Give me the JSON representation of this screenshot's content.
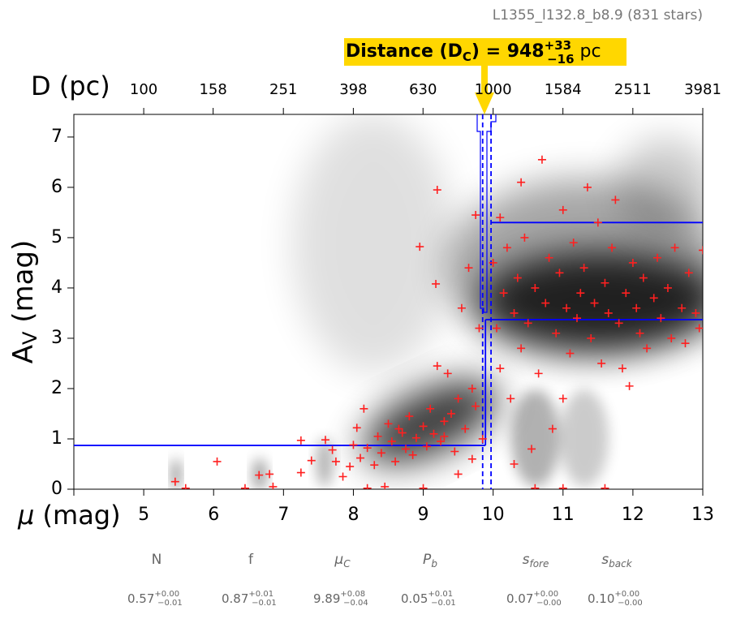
{
  "chart_data": {
    "type": "scatter",
    "title": "L1355_l132.8_b8.9 (831 stars)",
    "xlabel": {
      "symbol": "μ",
      "unit": " (mag)"
    },
    "ylabel": {
      "main": "A",
      "sub": "V",
      "unit": " (mag)"
    },
    "x2label": "D (pc)",
    "xlim": [
      4,
      13
    ],
    "xticks": [
      4,
      5,
      6,
      7,
      8,
      9,
      10,
      11,
      12,
      13
    ],
    "xtick_labels_from": 1,
    "ylim": [
      0,
      7.45
    ],
    "yticks": [
      0,
      1,
      2,
      3,
      4,
      5,
      6,
      7
    ],
    "x2lim": [
      63.1,
      3981
    ],
    "x2scale": "log",
    "x2ticks": [
      100,
      158,
      251,
      398,
      630,
      1000,
      1584,
      2511,
      3981
    ],
    "annotation": {
      "text": "Distance (D",
      "sub": "C",
      "eq": ") = ",
      "value": 948,
      "plus": "+33",
      "minus": "−16",
      "unit": " pc"
    },
    "model": {
      "color": "#0000ff",
      "fore_av": 0.87,
      "back_av": 3.37,
      "mu_c": 9.89,
      "mu_lo": 9.85,
      "mu_hi": 9.97,
      "upper_av": 5.3
    },
    "series": [
      {
        "color": "#ff2020",
        "x": [
          5.45,
          5.6,
          6.05,
          6.45,
          6.65,
          6.8,
          6.85,
          7.25,
          7.25,
          7.4,
          7.6,
          7.7,
          7.75,
          7.85,
          7.95,
          8.0,
          8.05,
          8.1,
          8.15,
          8.2,
          8.3,
          8.35,
          8.4,
          8.5,
          8.55,
          8.6,
          8.7,
          8.75,
          8.8,
          8.85,
          8.9,
          8.95,
          9.0,
          9.05,
          9.1,
          9.15,
          9.2,
          9.18,
          9.25,
          9.3,
          9.35,
          9.4,
          9.45,
          9.5,
          9.55,
          9.6,
          9.65,
          9.7,
          9.75,
          9.75,
          9.8,
          9.85,
          9.2,
          8.45,
          8.2,
          9.0,
          9.5,
          9.7,
          8.65,
          9.3,
          10.0,
          10.05,
          10.1,
          10.15,
          10.2,
          10.25,
          10.3,
          10.35,
          10.4,
          10.45,
          10.5,
          10.55,
          10.6,
          10.65,
          10.7,
          10.75,
          10.8,
          10.85,
          10.9,
          10.95,
          11.0,
          11.0,
          11.05,
          11.1,
          11.15,
          11.2,
          11.25,
          11.3,
          11.35,
          11.4,
          11.45,
          11.5,
          11.55,
          11.6,
          11.65,
          11.7,
          11.75,
          11.8,
          11.85,
          11.9,
          11.95,
          12.0,
          12.05,
          12.1,
          12.15,
          12.2,
          12.3,
          12.35,
          12.4,
          12.5,
          12.55,
          12.6,
          12.7,
          12.75,
          12.8,
          12.9,
          12.95,
          13.0,
          10.3,
          11.0,
          11.6,
          10.6,
          10.1,
          10.4
        ],
        "values": [
          0.15,
          0.02,
          0.55,
          0.02,
          0.28,
          0.3,
          0.05,
          0.97,
          0.33,
          0.57,
          0.98,
          0.78,
          0.55,
          0.25,
          0.45,
          0.88,
          1.22,
          0.62,
          1.6,
          0.82,
          0.48,
          1.05,
          0.72,
          1.3,
          0.95,
          0.55,
          1.12,
          0.8,
          1.45,
          0.68,
          1.02,
          4.82,
          1.25,
          0.85,
          1.6,
          1.1,
          5.95,
          4.08,
          0.95,
          1.35,
          2.3,
          1.5,
          0.75,
          1.8,
          3.6,
          1.2,
          4.4,
          2.0,
          5.45,
          1.65,
          3.2,
          1.0,
          2.45,
          0.05,
          0.02,
          0.02,
          0.3,
          0.6,
          1.2,
          1.05,
          4.5,
          3.2,
          2.4,
          3.9,
          4.8,
          1.8,
          3.5,
          4.2,
          2.8,
          5.0,
          3.3,
          0.8,
          4.0,
          2.3,
          6.55,
          3.7,
          4.6,
          1.2,
          3.1,
          4.3,
          5.55,
          1.8,
          3.6,
          2.7,
          4.9,
          3.4,
          3.9,
          4.4,
          6.0,
          3.0,
          3.7,
          5.3,
          2.5,
          4.1,
          3.5,
          4.8,
          5.75,
          3.3,
          2.4,
          3.9,
          2.05,
          4.5,
          3.6,
          3.1,
          4.2,
          2.8,
          3.8,
          4.6,
          3.4,
          4.0,
          3.0,
          4.8,
          3.6,
          2.9,
          4.3,
          3.5,
          3.2,
          4.75,
          0.5,
          0.02,
          0.02,
          0.02,
          5.4,
          6.1
        ]
      }
    ],
    "params": [
      {
        "name": "N",
        "sub": "",
        "value": "0.57",
        "plus": "+0.00",
        "minus": "−0.01"
      },
      {
        "name": "f",
        "sub": "",
        "value": "0.87",
        "plus": "+0.01",
        "minus": "−0.01"
      },
      {
        "name": "μ",
        "sub": "C",
        "value": "9.89",
        "plus": "+0.08",
        "minus": "−0.04"
      },
      {
        "name": "P",
        "sub": "b",
        "value": "0.05",
        "plus": "+0.01",
        "minus": "−0.01"
      },
      {
        "name": "s",
        "sub": "fore",
        "value": "0.07",
        "plus": "+0.00",
        "minus": "−0.00"
      },
      {
        "name": "s",
        "sub": "back",
        "value": "0.10",
        "plus": "+0.00",
        "minus": "−0.00"
      }
    ]
  }
}
